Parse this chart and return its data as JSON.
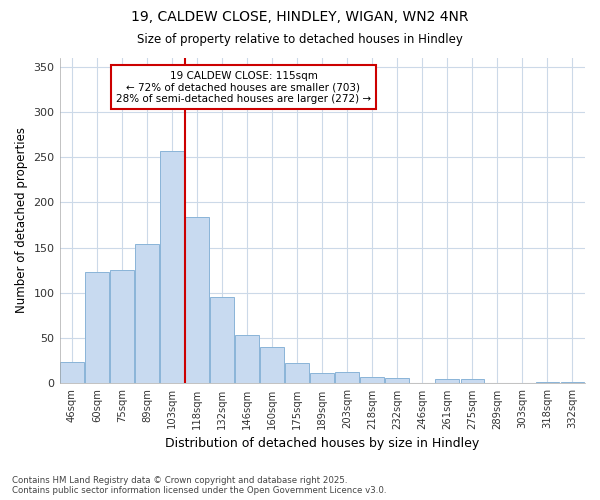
{
  "title1": "19, CALDEW CLOSE, HINDLEY, WIGAN, WN2 4NR",
  "title2": "Size of property relative to detached houses in Hindley",
  "xlabel": "Distribution of detached houses by size in Hindley",
  "ylabel": "Number of detached properties",
  "categories": [
    "46sqm",
    "60sqm",
    "75sqm",
    "89sqm",
    "103sqm",
    "118sqm",
    "132sqm",
    "146sqm",
    "160sqm",
    "175sqm",
    "189sqm",
    "203sqm",
    "218sqm",
    "232sqm",
    "246sqm",
    "261sqm",
    "275sqm",
    "289sqm",
    "303sqm",
    "318sqm",
    "332sqm"
  ],
  "values": [
    24,
    123,
    125,
    154,
    257,
    184,
    96,
    54,
    40,
    23,
    11,
    13,
    7,
    6,
    0,
    5,
    5,
    0,
    0,
    2,
    2
  ],
  "bar_color": "#c8daf0",
  "bar_edge_color": "#8ab4d8",
  "vline_color": "#cc0000",
  "annotation_title": "19 CALDEW CLOSE: 115sqm",
  "annotation_line1": "← 72% of detached houses are smaller (703)",
  "annotation_line2": "28% of semi-detached houses are larger (272) →",
  "annotation_box_edgecolor": "#cc0000",
  "ylim": [
    0,
    360
  ],
  "yticks": [
    0,
    50,
    100,
    150,
    200,
    250,
    300,
    350
  ],
  "footer1": "Contains HM Land Registry data © Crown copyright and database right 2025.",
  "footer2": "Contains public sector information licensed under the Open Government Licence v3.0.",
  "bg_color": "#ffffff",
  "plot_bg_color": "#ffffff",
  "grid_color": "#ccd9e8"
}
